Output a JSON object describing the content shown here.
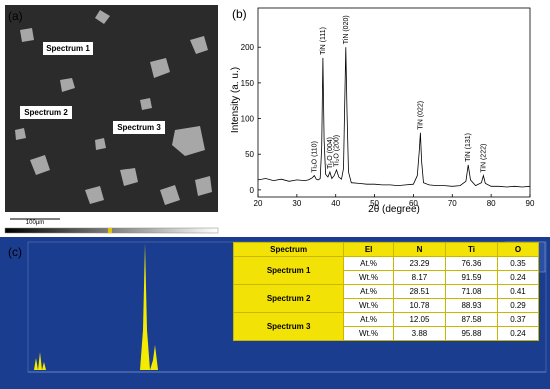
{
  "panels": {
    "a": {
      "label": "(a)",
      "spectrum_labels": [
        "Spectrum 1",
        "Spectrum 2",
        "Spectrum 3"
      ],
      "scale_bar": "100µm"
    },
    "c": {
      "label": "(c)"
    }
  },
  "chart_data": {
    "type": "line",
    "panel_label": "(b)",
    "x_label": "2θ (degree)",
    "y_label": "Intensity (a. u.)",
    "color": "#000000",
    "x": [
      20,
      22,
      24,
      26,
      28,
      30,
      32,
      33,
      34,
      34.5,
      35,
      35.5,
      36,
      36.4,
      36.7,
      37,
      37.4,
      38,
      38.5,
      39,
      39.6,
      40.2,
      40.8,
      41.5,
      42,
      42.3,
      42.6,
      42.9,
      43.3,
      44,
      46,
      48,
      50,
      52,
      54,
      56,
      58,
      60,
      61,
      61.5,
      61.8,
      62.1,
      62.6,
      64,
      66,
      68,
      70,
      72,
      73.5,
      74.1,
      74.7,
      76,
      77.5,
      78,
      78.5,
      80,
      82,
      84,
      86,
      88,
      90
    ],
    "values": [
      14,
      16,
      13,
      15,
      12,
      14,
      13,
      14,
      17,
      20,
      15,
      14,
      16,
      60,
      185,
      70,
      22,
      18,
      25,
      16,
      20,
      28,
      18,
      15,
      30,
      120,
      200,
      110,
      25,
      10,
      9,
      8,
      8,
      7,
      7,
      6,
      7,
      8,
      20,
      55,
      80,
      40,
      10,
      7,
      6,
      6,
      5,
      6,
      12,
      35,
      14,
      6,
      10,
      20,
      9,
      5,
      5,
      4,
      5,
      4,
      5
    ],
    "xlim": [
      20,
      90
    ],
    "xticks": [
      20,
      30,
      40,
      50,
      60,
      70,
      80,
      90
    ],
    "ylim": [
      -10,
      255
    ],
    "yticks": [
      0,
      50,
      100,
      150,
      200
    ],
    "annotations": [
      {
        "text": "Ti₂O (110)",
        "x": 34.5,
        "y": 20
      },
      {
        "text": "TiN (111)",
        "x": 36.7,
        "y": 185
      },
      {
        "text": "Ti₂O (004)",
        "x": 38.5,
        "y": 25
      },
      {
        "text": "Ti₂O (200)",
        "x": 40.2,
        "y": 28
      },
      {
        "text": "TiN (020)",
        "x": 42.6,
        "y": 200
      },
      {
        "text": "TiN (022)",
        "x": 61.8,
        "y": 80
      },
      {
        "text": "TiN (131)",
        "x": 74.1,
        "y": 35
      },
      {
        "text": "TiN (222)",
        "x": 78,
        "y": 20
      }
    ]
  },
  "table": {
    "header": [
      "Spectrum",
      "El",
      "N",
      "Ti",
      "O"
    ],
    "groups": [
      {
        "name": "Spectrum 1",
        "rows": [
          [
            "At.%",
            23.29,
            76.36,
            0.35
          ],
          [
            "Wt.%",
            8.17,
            91.59,
            0.24
          ]
        ]
      },
      {
        "name": "Spectrum 2",
        "rows": [
          [
            "At.%",
            28.51,
            71.08,
            0.41
          ],
          [
            "Wt.%",
            10.78,
            88.93,
            0.29
          ]
        ]
      },
      {
        "name": "Spectrum 3",
        "rows": [
          [
            "At.%",
            12.05,
            87.58,
            0.37
          ],
          [
            "Wt.%",
            3.88,
            95.88,
            0.24
          ]
        ]
      }
    ]
  }
}
